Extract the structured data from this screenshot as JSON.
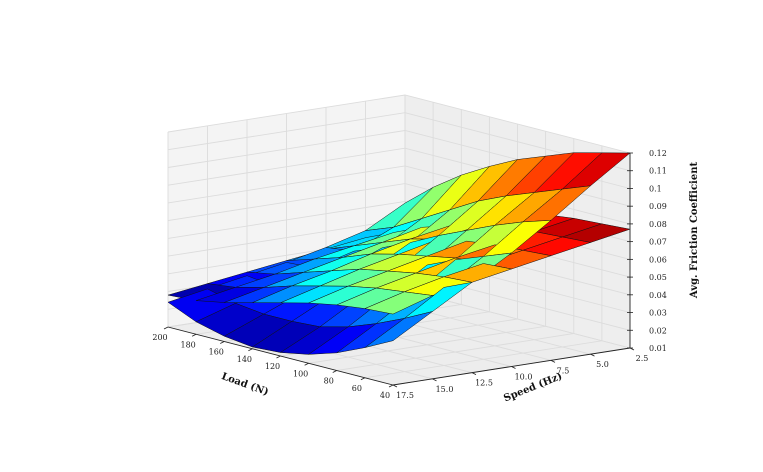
{
  "chart_data": {
    "type": "surface-3d",
    "title": "",
    "xlabel": "Load (N)",
    "ylabel": "Speed (Hz)",
    "zlabel": "Avg. Friction Coefficient",
    "x_ticks": [
      "200",
      "180",
      "160",
      "140",
      "120",
      "100",
      "80",
      "60",
      "40"
    ],
    "y_ticks": [
      "17.5",
      "15.0",
      "12.5",
      "10.0",
      "7.5",
      "5.0",
      "2.5"
    ],
    "z_ticks": [
      "0.01",
      "0.02",
      "0.03",
      "0.04",
      "0.05",
      "0.06",
      "0.07",
      "0.08",
      "0.09",
      "0.1",
      "0.11",
      "0.12"
    ],
    "xlim": [
      40,
      200
    ],
    "ylim": [
      2.5,
      17.5
    ],
    "zlim": [
      0.01,
      0.12
    ],
    "grid": true,
    "colormap": "jet",
    "surfaces": [
      {
        "name": "",
        "load": [
          40,
          60,
          80,
          100,
          120,
          140,
          160,
          180,
          200
        ],
        "speed": [
          2.5,
          5.0,
          7.5,
          10.0,
          12.5,
          15.0,
          17.5
        ],
        "z": [
          [
            0.12,
            0.116,
            0.112,
            0.106,
            0.1,
            0.092,
            0.083,
            0.072,
            0.059
          ],
          [
            0.105,
            0.099,
            0.093,
            0.087,
            0.08,
            0.071,
            0.062,
            0.053,
            0.047
          ],
          [
            0.089,
            0.084,
            0.078,
            0.071,
            0.064,
            0.056,
            0.049,
            0.043,
            0.041
          ],
          [
            0.074,
            0.068,
            0.062,
            0.055,
            0.049,
            0.044,
            0.04,
            0.037,
            0.036
          ],
          [
            0.061,
            0.054,
            0.047,
            0.041,
            0.036,
            0.033,
            0.031,
            0.03,
            0.032
          ],
          [
            0.048,
            0.04,
            0.033,
            0.027,
            0.023,
            0.022,
            0.022,
            0.024,
            0.028
          ],
          [
            0.035,
            0.027,
            0.02,
            0.015,
            0.012,
            0.011,
            0.013,
            0.017,
            0.024
          ]
        ]
      },
      {
        "name": "",
        "load": [
          40,
          60,
          80,
          100,
          120,
          140,
          160,
          180,
          200
        ],
        "speed": [
          2.5,
          5.0,
          7.5,
          10.0,
          12.5,
          15.0,
          17.5
        ],
        "z": [
          [
            0.077,
            0.076,
            0.075,
            0.073,
            0.07,
            0.066,
            0.061,
            0.055,
            0.047
          ],
          [
            0.073,
            0.072,
            0.071,
            0.069,
            0.066,
            0.062,
            0.057,
            0.05,
            0.043
          ],
          [
            0.069,
            0.068,
            0.067,
            0.065,
            0.062,
            0.058,
            0.052,
            0.046,
            0.04
          ],
          [
            0.065,
            0.064,
            0.063,
            0.06,
            0.057,
            0.053,
            0.047,
            0.042,
            0.037
          ],
          [
            0.061,
            0.06,
            0.058,
            0.055,
            0.052,
            0.047,
            0.042,
            0.037,
            0.034
          ],
          [
            0.057,
            0.055,
            0.053,
            0.05,
            0.046,
            0.042,
            0.037,
            0.033,
            0.031
          ],
          [
            0.05,
            0.049,
            0.047,
            0.044,
            0.04,
            0.036,
            0.032,
            0.029,
            0.028
          ]
        ]
      }
    ]
  }
}
